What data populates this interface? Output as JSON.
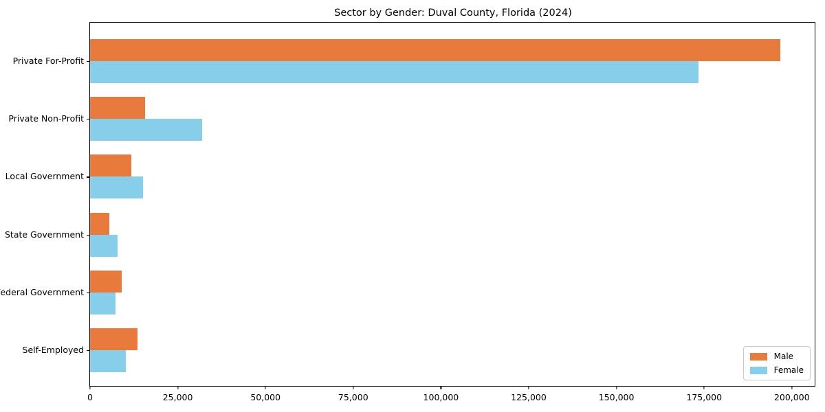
{
  "chart_data": {
    "type": "bar",
    "orientation": "horizontal",
    "title": "Sector by Gender: Duval County, Florida (2024)",
    "xlabel": "",
    "ylabel": "",
    "categories": [
      "Private For-Profit",
      "Private Non-Profit",
      "Local Government",
      "State Government",
      "Federal Government",
      "Self-Employed"
    ],
    "series": [
      {
        "name": "Male",
        "color": "#e87a3b",
        "values": [
          196700,
          15600,
          11800,
          5400,
          9000,
          13500
        ]
      },
      {
        "name": "Female",
        "color": "#87ceeb",
        "values": [
          173300,
          32000,
          15000,
          7900,
          7200,
          10200
        ]
      }
    ],
    "xlim": [
      0,
      206500
    ],
    "xticks": [
      0,
      25000,
      50000,
      75000,
      100000,
      125000,
      150000,
      175000,
      200000
    ],
    "xtick_labels": [
      "0",
      "25,000",
      "50,000",
      "75,000",
      "100,000",
      "125,000",
      "150,000",
      "175,000",
      "200,000"
    ],
    "grid": false,
    "legend_position": "lower right",
    "spine_color": "#000000",
    "background_color": "#ffffff"
  }
}
